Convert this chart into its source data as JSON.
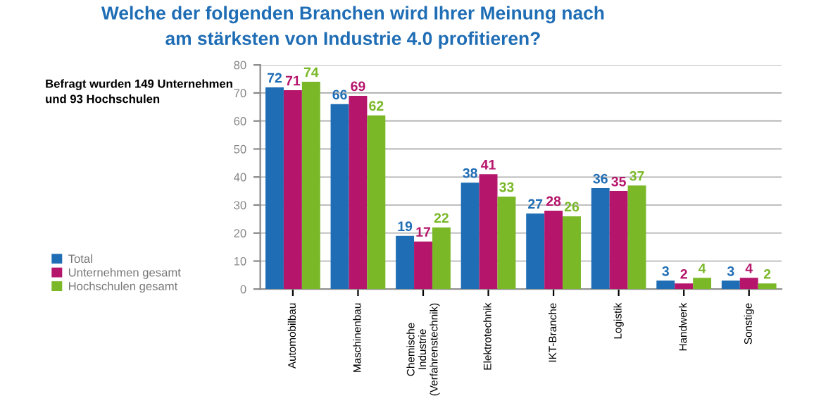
{
  "chart_data": {
    "type": "bar",
    "title": "Welche der folgenden Branchen wird Ihrer Meinung nach\nam stärksten von Industrie 4.0 profitieren?",
    "annotations": [
      "Befragt wurden 149 Unternehmen\nund 93 Hochschulen"
    ],
    "categories": [
      "Automobilbau",
      "Maschinenbau",
      "Chemische\nIndustrie\n(Verfahrenstechnik)",
      "Elektrotechnik",
      "IKT-Branche",
      "Logistik",
      "Handwerk",
      "Sonstige"
    ],
    "series": [
      {
        "name": "Total",
        "color": "#1f6db5",
        "values": [
          72,
          66,
          19,
          38,
          27,
          36,
          3,
          3
        ]
      },
      {
        "name": "Unternehmen gesamt",
        "color": "#b5156b",
        "values": [
          71,
          69,
          17,
          41,
          28,
          35,
          2,
          4
        ]
      },
      {
        "name": "Hochschulen gesamt",
        "color": "#7ab828",
        "values": [
          74,
          62,
          22,
          33,
          26,
          37,
          4,
          2
        ]
      }
    ],
    "ylim": [
      0,
      80
    ],
    "yticks": [
      0,
      10,
      20,
      30,
      40,
      50,
      60,
      70,
      80
    ],
    "grid": "y",
    "legend": "left",
    "data_labels": true
  }
}
